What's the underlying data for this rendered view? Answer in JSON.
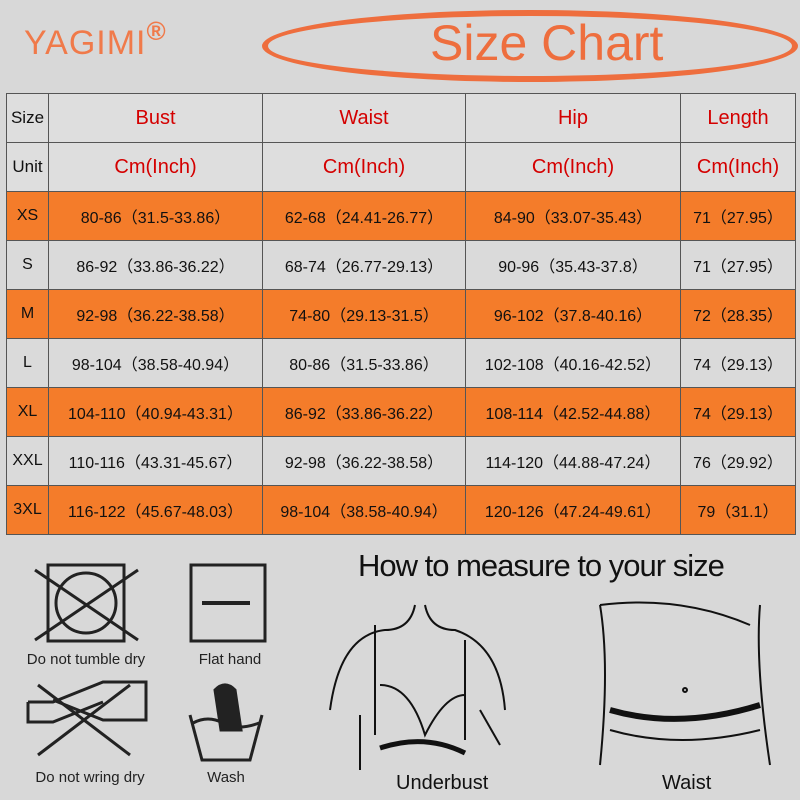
{
  "brand": "YAGIMI",
  "registered": "®",
  "title": "Size Chart",
  "table": {
    "headers": [
      "Size",
      "Bust",
      "Waist",
      "Hip",
      "Length"
    ],
    "units": [
      "Unit",
      "Cm(Inch)",
      "Cm(Inch)",
      "Cm(Inch)",
      "Cm(Inch)"
    ],
    "rows": [
      [
        "XS",
        "80-86（31.5-33.86）",
        "62-68（24.41-26.77）",
        "84-90（33.07-35.43）",
        "71（27.95）"
      ],
      [
        "S",
        "86-92（33.86-36.22）",
        "68-74（26.77-29.13）",
        "90-96（35.43-37.8）",
        "71（27.95）"
      ],
      [
        "M",
        "92-98（36.22-38.58）",
        "74-80（29.13-31.5）",
        "96-102（37.8-40.16）",
        "72（28.35）"
      ],
      [
        "L",
        "98-104（38.58-40.94）",
        "80-86（31.5-33.86）",
        "102-108（40.16-42.52）",
        "74（29.13）"
      ],
      [
        "XL",
        "104-110（40.94-43.31）",
        "86-92（33.86-36.22）",
        "108-114（42.52-44.88）",
        "74（29.13）"
      ],
      [
        "XXL",
        "110-116（43.31-45.67）",
        "92-98（36.22-38.58）",
        "114-120（44.88-47.24）",
        "76（29.92）"
      ],
      [
        "3XL",
        "116-122（45.67-48.03）",
        "98-104（38.58-40.94）",
        "120-126（47.24-49.61）",
        "79（31.1）"
      ]
    ]
  },
  "care": [
    "Do not tumble dry",
    "Flat hand",
    "Do not wring dry",
    "Wash"
  ],
  "how_title": "How to measure to your size",
  "measure_labels": [
    "Underbust",
    "Waist"
  ],
  "colors": {
    "accent": "#f47c2a",
    "header_text": "#d40000"
  }
}
